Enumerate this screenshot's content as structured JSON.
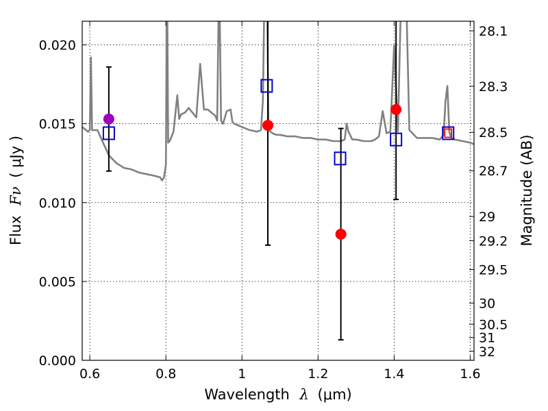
{
  "chart_data": {
    "type": "scatter",
    "title": "",
    "xlabel": "Wavelength",
    "xlabel_symbol": "λ",
    "xlabel_unit": "(μm)",
    "ylabel": "Flux",
    "ylabel_symbol": "Fν",
    "ylabel_unit": "( μJy )",
    "y2label": "Magnitude (AB)",
    "xlim": [
      0.58,
      1.61
    ],
    "ylim": [
      0.0,
      0.0215
    ],
    "grid": true,
    "x_ticks": [
      {
        "value": 0.6,
        "label": "0.6"
      },
      {
        "value": 0.8,
        "label": "0.8"
      },
      {
        "value": 1.0,
        "label": "1"
      },
      {
        "value": 1.2,
        "label": "1.2"
      },
      {
        "value": 1.4,
        "label": "1.4"
      },
      {
        "value": 1.6,
        "label": "1.6"
      }
    ],
    "y_ticks": [
      {
        "value": 0.0,
        "label": "0.000"
      },
      {
        "value": 0.005,
        "label": "0.005"
      },
      {
        "value": 0.01,
        "label": "0.010"
      },
      {
        "value": 0.015,
        "label": "0.015"
      },
      {
        "value": 0.02,
        "label": "0.020"
      }
    ],
    "y2_ticks": [
      {
        "value": 28.1,
        "label": "28.1"
      },
      {
        "value": 28.3,
        "label": "28.3"
      },
      {
        "value": 28.5,
        "label": "28.5"
      },
      {
        "value": 28.7,
        "label": "28.7"
      },
      {
        "value": 29.0,
        "label": "29"
      },
      {
        "value": 29.2,
        "label": "29.2"
      },
      {
        "value": 29.5,
        "label": "29.5"
      },
      {
        "value": 30.0,
        "label": "30"
      },
      {
        "value": 30.5,
        "label": "30.5"
      },
      {
        "value": 31.0,
        "label": "31"
      },
      {
        "value": 32.0,
        "label": "32"
      }
    ],
    "series": [
      {
        "kind": "line",
        "color": "#808080",
        "x": [
          0.58,
          0.595,
          0.6,
          0.603,
          0.606,
          0.62,
          0.635,
          0.65,
          0.67,
          0.69,
          0.71,
          0.73,
          0.75,
          0.77,
          0.785,
          0.79,
          0.795,
          0.8,
          0.803,
          0.806,
          0.81,
          0.82,
          0.83,
          0.835,
          0.84,
          0.85,
          0.86,
          0.87,
          0.88,
          0.89,
          0.9,
          0.91,
          0.92,
          0.93,
          0.935,
          0.94,
          0.945,
          0.95,
          0.96,
          0.97,
          0.975,
          0.98,
          0.99,
          1.0,
          1.02,
          1.04,
          1.05,
          1.055,
          1.06,
          1.065,
          1.07,
          1.08,
          1.09,
          1.1,
          1.12,
          1.14,
          1.16,
          1.18,
          1.2,
          1.22,
          1.24,
          1.26,
          1.27,
          1.275,
          1.28,
          1.29,
          1.3,
          1.32,
          1.34,
          1.35,
          1.36,
          1.37,
          1.38,
          1.39,
          1.4,
          1.41,
          1.42,
          1.43,
          1.44,
          1.46,
          1.48,
          1.5,
          1.52,
          1.53,
          1.535,
          1.54,
          1.545,
          1.55,
          1.56,
          1.58,
          1.6,
          1.61
        ],
        "y": [
          0.0148,
          0.0145,
          0.0146,
          0.0192,
          0.0146,
          0.0146,
          0.0138,
          0.013,
          0.0125,
          0.0122,
          0.0121,
          0.0119,
          0.0118,
          0.0117,
          0.0116,
          0.0114,
          0.0116,
          0.0124,
          0.025,
          0.0138,
          0.0139,
          0.0145,
          0.0168,
          0.0153,
          0.0156,
          0.0157,
          0.016,
          0.0157,
          0.0154,
          0.0188,
          0.0159,
          0.0159,
          0.0157,
          0.0155,
          0.0152,
          0.025,
          0.0152,
          0.015,
          0.0158,
          0.0159,
          0.0151,
          0.015,
          0.0149,
          0.0148,
          0.0146,
          0.0145,
          0.0146,
          0.0165,
          0.025,
          0.025,
          0.0146,
          0.0144,
          0.0143,
          0.0143,
          0.0142,
          0.0142,
          0.0141,
          0.0141,
          0.014,
          0.014,
          0.0139,
          0.0139,
          0.014,
          0.015,
          0.0145,
          0.014,
          0.014,
          0.0139,
          0.0139,
          0.014,
          0.0142,
          0.0158,
          0.0144,
          0.0145,
          0.02,
          0.0145,
          0.025,
          0.025,
          0.0146,
          0.0141,
          0.0141,
          0.0141,
          0.014,
          0.0143,
          0.0164,
          0.0174,
          0.0145,
          0.0141,
          0.014,
          0.0139,
          0.0138,
          0.0137
        ]
      },
      {
        "kind": "points",
        "marker": "circle",
        "color": "#ff0000",
        "x": [
          1.068,
          1.26,
          1.405
        ],
        "y": [
          0.0149,
          0.008,
          0.0159
        ],
        "yerr": [
          0.0076,
          0.0067,
          0.0057
        ]
      },
      {
        "kind": "points",
        "marker": "circle",
        "color": "#a000c0",
        "x": [
          0.65
        ],
        "y": [
          0.0153
        ],
        "yerr": [
          0.0033
        ]
      },
      {
        "kind": "points",
        "marker": "open-square",
        "color": "#0000cc",
        "x": [
          0.65,
          1.065,
          1.258,
          1.405,
          1.542
        ],
        "y": [
          0.0144,
          0.0174,
          0.0128,
          0.014,
          0.0144
        ]
      },
      {
        "kind": "points",
        "marker": "open-square-small",
        "color": "#ff0000",
        "x": [
          1.542
        ],
        "y": [
          0.0144
        ]
      }
    ]
  }
}
